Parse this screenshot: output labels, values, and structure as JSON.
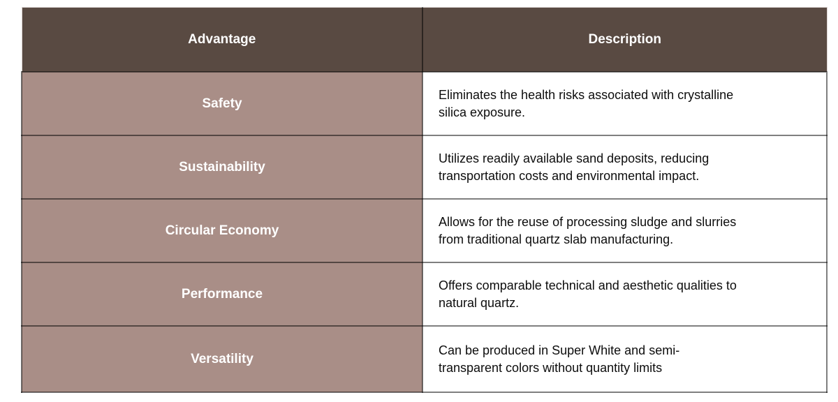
{
  "table": {
    "columns": [
      "Advantage",
      "Description"
    ],
    "rows": [
      {
        "advantage": "Safety",
        "description": "Eliminates the health risks associated with crystalline\nsilica exposure."
      },
      {
        "advantage": "Sustainability",
        "description": "Utilizes readily available sand deposits, reducing\ntransportation costs and environmental impact."
      },
      {
        "advantage": "Circular Economy",
        "description": "Allows for the reuse of processing sludge and slurries\nfrom traditional quartz slab manufacturing."
      },
      {
        "advantage": "Performance",
        "description": "Offers comparable technical and aesthetic qualities to\nnatural quartz."
      },
      {
        "advantage": "Versatility",
        "description": "Can be produced in Super White and semi-\ntransparent colors without quantity limits"
      }
    ]
  },
  "colors": {
    "header_bg": "#594a42",
    "advantage_bg": "#a98e87",
    "header_text": "#ffffff",
    "description_text": "#0d0d0d",
    "border": "rgba(0,0,0,0.5)",
    "page_bg": "#ffffff"
  }
}
